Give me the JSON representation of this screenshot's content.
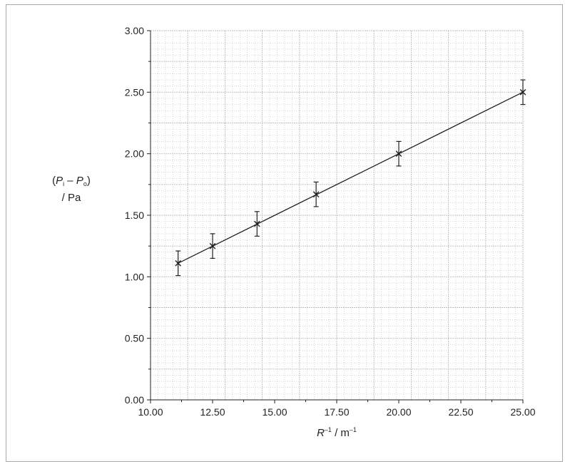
{
  "chart_data": {
    "type": "scatter",
    "xlim": [
      10,
      25
    ],
    "ylim": [
      0,
      3
    ],
    "x_ticks": [
      "10.00",
      "12.50",
      "15.00",
      "17.50",
      "20.00",
      "22.50",
      "25.00"
    ],
    "y_ticks": [
      "0.00",
      "0.50",
      "1.00",
      "1.50",
      "2.00",
      "2.50",
      "3.00"
    ],
    "ylabel": {
      "open": "(",
      "p1": "P",
      "s1": "i",
      "minus": " – ",
      "p2": "P",
      "s2": "o",
      "close": ")",
      "unit": "/ Pa"
    },
    "xlabel": {
      "var": "R",
      "exp1": "–1",
      "mid": " / m",
      "exp2": "–1"
    },
    "points": [
      {
        "x": 11.11,
        "y": 1.11,
        "err": 0.1
      },
      {
        "x": 12.5,
        "y": 1.25,
        "err": 0.1
      },
      {
        "x": 14.29,
        "y": 1.43,
        "err": 0.1
      },
      {
        "x": 16.67,
        "y": 1.67,
        "err": 0.1
      },
      {
        "x": 20.0,
        "y": 2.0,
        "err": 0.1
      },
      {
        "x": 25.0,
        "y": 2.5,
        "err": 0.1
      }
    ],
    "fit_line": {
      "x": [
        11.11,
        25.0
      ],
      "y": [
        1.11,
        2.5
      ]
    },
    "grid": true,
    "marker": "cross",
    "colors": {
      "ink": "#231f20",
      "grid": "#bdbdbd",
      "frame": "#a8a8a8"
    }
  }
}
